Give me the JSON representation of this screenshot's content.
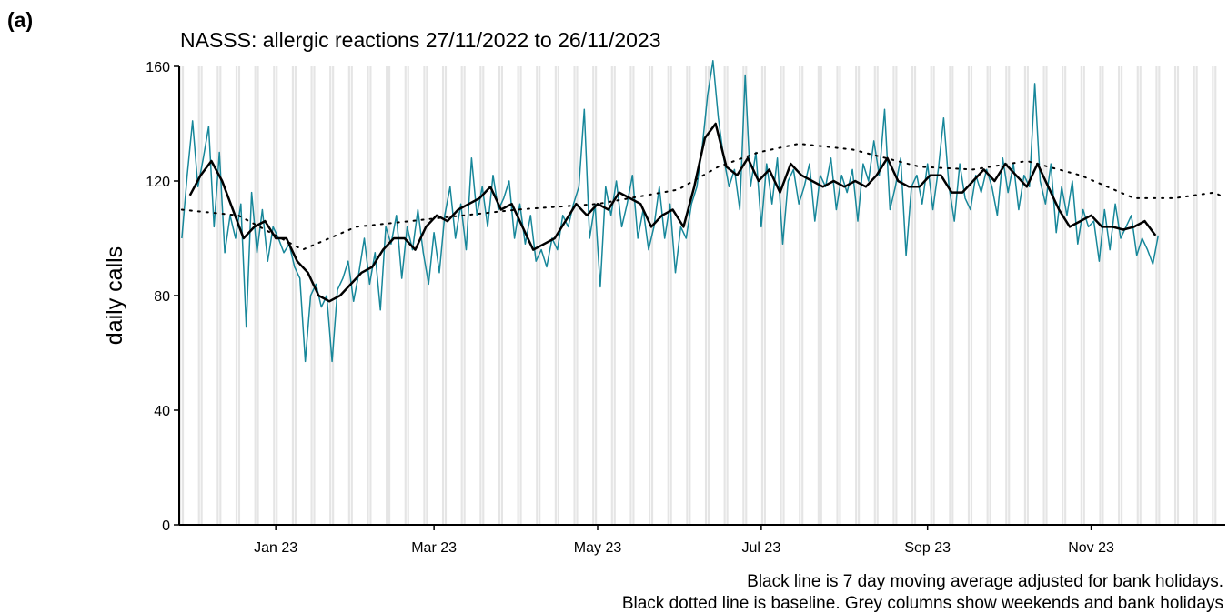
{
  "chart_data": {
    "type": "line",
    "panel_label": "(a)",
    "title": "NASSS: allergic reactions 27/11/2022 to 26/11/2023",
    "y_label": "daily calls",
    "notes": [
      "Black line is 7 day moving average adjusted for bank holidays.",
      "Black dotted line is baseline. Grey columns show weekends and bank holidays"
    ],
    "xlim": [
      -36,
      354
    ],
    "xticks": [
      {
        "value": 0,
        "label": "Jan 23"
      },
      {
        "value": 59,
        "label": "Mar 23"
      },
      {
        "value": 120,
        "label": "May 23"
      },
      {
        "value": 181,
        "label": "Jul 23"
      },
      {
        "value": 243,
        "label": "Sep 23"
      },
      {
        "value": 304,
        "label": "Nov 23"
      }
    ],
    "ylim": [
      0,
      160
    ],
    "yticks": [
      0,
      40,
      80,
      120,
      160
    ],
    "shade_color": "#e5e5e5",
    "series": [
      {
        "color": "#17879a",
        "width": 1.5,
        "linestyle": "solid",
        "x": [
          -35,
          -33,
          -31,
          -29,
          -27,
          -25,
          -23,
          -21,
          -19,
          -17,
          -15,
          -13,
          -11,
          -9,
          -7,
          -5,
          -3,
          -1,
          1,
          3,
          5,
          7,
          9,
          11,
          13,
          15,
          17,
          19,
          21,
          23,
          25,
          27,
          29,
          31,
          33,
          35,
          37,
          39,
          41,
          43,
          45,
          47,
          49,
          51,
          53,
          55,
          57,
          59,
          61,
          63,
          65,
          67,
          69,
          71,
          73,
          75,
          77,
          79,
          81,
          83,
          85,
          87,
          89,
          91,
          93,
          95,
          97,
          99,
          101,
          103,
          105,
          107,
          109,
          111,
          113,
          115,
          117,
          119,
          121,
          123,
          125,
          127,
          129,
          131,
          133,
          135,
          137,
          139,
          141,
          143,
          145,
          147,
          149,
          151,
          153,
          155,
          157,
          159,
          161,
          163,
          165,
          167,
          169,
          171,
          173,
          175,
          177,
          179,
          181,
          183,
          185,
          187,
          189,
          191,
          193,
          195,
          197,
          199,
          201,
          203,
          205,
          207,
          209,
          211,
          213,
          215,
          217,
          219,
          221,
          223,
          225,
          227,
          229,
          231,
          233,
          235,
          237,
          239,
          241,
          243,
          245,
          247,
          249,
          251,
          253,
          255,
          257,
          259,
          261,
          263,
          265,
          267,
          269,
          271,
          273,
          275,
          277,
          279,
          281,
          283,
          285,
          287,
          289,
          291,
          293,
          295,
          297,
          299,
          301,
          303,
          305,
          307,
          309,
          311,
          313,
          315,
          317,
          319,
          321,
          323,
          325,
          327,
          329
        ],
        "values": [
          100,
          122,
          141,
          118,
          128,
          139,
          104,
          130,
          95,
          108,
          100,
          112,
          69,
          116,
          95,
          110,
          92,
          104,
          100,
          95,
          98,
          90,
          86,
          57,
          80,
          84,
          76,
          80,
          57,
          82,
          86,
          92,
          78,
          88,
          100,
          84,
          95,
          75,
          104,
          98,
          108,
          86,
          104,
          96,
          110,
          95,
          84,
          102,
          88,
          108,
          118,
          100,
          112,
          96,
          128,
          108,
          118,
          104,
          122,
          110,
          114,
          120,
          100,
          112,
          98,
          108,
          92,
          96,
          90,
          100,
          96,
          108,
          104,
          112,
          118,
          145,
          100,
          112,
          83,
          118,
          108,
          120,
          104,
          112,
          122,
          100,
          110,
          96,
          104,
          118,
          100,
          112,
          88,
          104,
          100,
          112,
          118,
          132,
          150,
          162,
          142,
          128,
          118,
          124,
          110,
          157,
          118,
          130,
          104,
          126,
          112,
          128,
          98,
          120,
          124,
          112,
          118,
          126,
          106,
          122,
          118,
          128,
          110,
          122,
          116,
          124,
          106,
          126,
          120,
          134,
          122,
          145,
          110,
          118,
          128,
          94,
          118,
          122,
          112,
          126,
          110,
          124,
          142,
          118,
          106,
          126,
          114,
          110,
          122,
          116,
          124,
          118,
          108,
          128,
          116,
          126,
          110,
          122,
          118,
          154,
          120,
          112,
          126,
          102,
          118,
          108,
          120,
          98,
          110,
          104,
          106,
          92,
          110,
          96,
          112,
          100,
          104,
          108,
          94,
          100,
          96,
          91,
          101
        ]
      },
      {
        "color": "#000000",
        "width": 2.5,
        "linestyle": "solid",
        "x": [
          -32,
          -28,
          -24,
          -20,
          -16,
          -12,
          -8,
          -4,
          0,
          4,
          8,
          12,
          16,
          20,
          24,
          28,
          32,
          36,
          40,
          44,
          48,
          52,
          56,
          60,
          64,
          68,
          72,
          76,
          80,
          84,
          88,
          92,
          96,
          100,
          104,
          108,
          112,
          116,
          120,
          124,
          128,
          132,
          136,
          140,
          144,
          148,
          152,
          156,
          160,
          164,
          168,
          172,
          176,
          180,
          184,
          188,
          192,
          196,
          200,
          204,
          208,
          212,
          216,
          220,
          224,
          228,
          232,
          236,
          240,
          244,
          248,
          252,
          256,
          260,
          264,
          268,
          272,
          276,
          280,
          284,
          288,
          292,
          296,
          300,
          304,
          308,
          312,
          316,
          320,
          324,
          328
        ],
        "values": [
          115,
          122,
          127,
          120,
          110,
          100,
          104,
          106,
          100,
          100,
          92,
          88,
          80,
          78,
          80,
          84,
          88,
          90,
          96,
          100,
          100,
          96,
          104,
          108,
          106,
          110,
          112,
          114,
          118,
          110,
          112,
          104,
          96,
          98,
          100,
          106,
          112,
          108,
          112,
          110,
          116,
          114,
          112,
          104,
          108,
          110,
          104,
          118,
          135,
          140,
          125,
          122,
          128,
          120,
          124,
          116,
          126,
          122,
          120,
          118,
          120,
          118,
          120,
          118,
          122,
          128,
          120,
          118,
          118,
          122,
          122,
          116,
          116,
          120,
          124,
          120,
          126,
          122,
          118,
          126,
          118,
          110,
          104,
          106,
          108,
          104,
          104,
          103,
          104,
          106,
          101
        ]
      },
      {
        "color": "#000000",
        "width": 2,
        "linestyle": "dotted",
        "x": [
          -35,
          -14,
          0,
          10,
          20,
          30,
          60,
          90,
          120,
          150,
          165,
          180,
          195,
          215,
          240,
          260,
          280,
          300,
          320,
          335,
          350,
          354
        ],
        "values": [
          110,
          108,
          101,
          96,
          100,
          104,
          107,
          110,
          112,
          117,
          125,
          130,
          133,
          131,
          125,
          124,
          127,
          122,
          114,
          114,
          116,
          114
        ]
      }
    ]
  }
}
